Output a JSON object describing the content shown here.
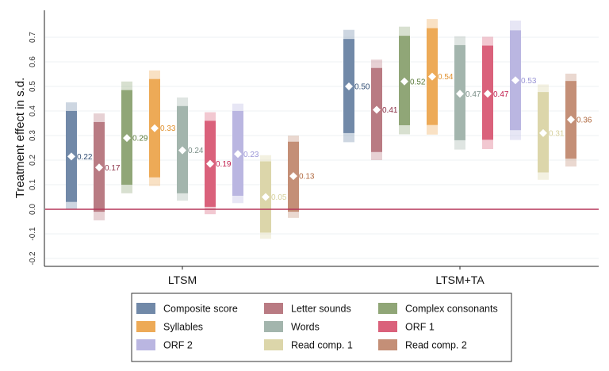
{
  "chart_data": {
    "type": "bar",
    "subtype": "range-bar with point estimates",
    "ylabel": "Treatment effect in s.d.",
    "xlabel": "",
    "ylim": [
      -0.2,
      0.75
    ],
    "yticks": [
      "-0.2",
      "-0.1",
      "0.0",
      "0.1",
      "0.2",
      "0.3",
      "0.4",
      "0.5",
      "0.6",
      "0.7"
    ],
    "ytick_values": [
      -0.2,
      -0.1,
      0.0,
      0.1,
      0.2,
      0.3,
      0.4,
      0.5,
      0.6,
      0.7
    ],
    "grid": true,
    "reference_line": {
      "y": 0,
      "color": "#b5375a"
    },
    "categories": [
      "LTSM",
      "LTSM+TA"
    ],
    "legend_position": "bottom",
    "series": [
      {
        "name": "Composite score",
        "color": "#7189a8",
        "label_color": "#2f4c73",
        "estimates": [
          0.215,
          0.5
        ],
        "labels": [
          "0.22",
          "0.50"
        ],
        "ci_inner": [
          [
            0.03,
            0.4
          ],
          [
            0.31,
            0.693
          ]
        ],
        "ci_outer": [
          [
            0.0,
            0.435
          ],
          [
            0.273,
            0.73
          ]
        ]
      },
      {
        "name": "Letter sounds",
        "color": "#b97b83",
        "label_color": "#8b2f45",
        "estimates": [
          0.17,
          0.405
        ],
        "labels": [
          "0.17",
          "0.41"
        ],
        "ci_inner": [
          [
            -0.01,
            0.355
          ],
          [
            0.233,
            0.575
          ]
        ],
        "ci_outer": [
          [
            -0.045,
            0.39
          ],
          [
            0.2,
            0.609
          ]
        ]
      },
      {
        "name": "Complex consonants",
        "color": "#90a677",
        "label_color": "#5a7a3a",
        "estimates": [
          0.29,
          0.52
        ],
        "labels": [
          "0.29",
          "0.52"
        ],
        "ci_inner": [
          [
            0.1,
            0.485
          ],
          [
            0.342,
            0.706
          ]
        ],
        "ci_outer": [
          [
            0.065,
            0.52
          ],
          [
            0.305,
            0.743
          ]
        ]
      },
      {
        "name": "Syllables",
        "color": "#edaa57",
        "label_color": "#e0902c",
        "estimates": [
          0.33,
          0.54
        ],
        "labels": [
          "0.33",
          "0.54"
        ],
        "ci_inner": [
          [
            0.13,
            0.53
          ],
          [
            0.343,
            0.737
          ]
        ],
        "ci_outer": [
          [
            0.095,
            0.565
          ],
          [
            0.304,
            0.774
          ]
        ]
      },
      {
        "name": "Words",
        "color": "#a3b5ad",
        "label_color": "#7a8e87",
        "estimates": [
          0.24,
          0.47
        ],
        "labels": [
          "0.24",
          "0.47"
        ],
        "ci_inner": [
          [
            0.065,
            0.42
          ],
          [
            0.281,
            0.668
          ]
        ],
        "ci_outer": [
          [
            0.035,
            0.455
          ],
          [
            0.243,
            0.704
          ]
        ]
      },
      {
        "name": "ORF 1",
        "color": "#da617b",
        "label_color": "#c01a4a",
        "estimates": [
          0.185,
          0.47
        ],
        "labels": [
          "0.19",
          "0.47"
        ],
        "ci_inner": [
          [
            0.01,
            0.36
          ],
          [
            0.283,
            0.666
          ]
        ],
        "ci_outer": [
          [
            -0.02,
            0.395
          ],
          [
            0.245,
            0.702
          ]
        ]
      },
      {
        "name": "ORF 2",
        "color": "#bab6e1",
        "label_color": "#9a95d6",
        "estimates": [
          0.225,
          0.525
        ],
        "labels": [
          "0.23",
          "0.53"
        ],
        "ci_inner": [
          [
            0.055,
            0.4
          ],
          [
            0.322,
            0.728
          ]
        ],
        "ci_outer": [
          [
            0.025,
            0.43
          ],
          [
            0.282,
            0.768
          ]
        ]
      },
      {
        "name": "Read comp. 1",
        "color": "#dcd6aa",
        "label_color": "#d6d09c",
        "estimates": [
          0.05,
          0.31
        ],
        "labels": [
          "0.05",
          "0.31"
        ],
        "ci_inner": [
          [
            -0.095,
            0.195
          ],
          [
            0.15,
            0.477
          ]
        ],
        "ci_outer": [
          [
            -0.12,
            0.22
          ],
          [
            0.12,
            0.508
          ]
        ]
      },
      {
        "name": "Read comp. 2",
        "color": "#c48f77",
        "label_color": "#b0683e",
        "estimates": [
          0.135,
          0.365
        ],
        "labels": [
          "0.13",
          "0.36"
        ],
        "ci_inner": [
          [
            -0.01,
            0.275
          ],
          [
            0.206,
            0.522
          ]
        ],
        "ci_outer": [
          [
            -0.035,
            0.3
          ],
          [
            0.174,
            0.552
          ]
        ]
      }
    ]
  }
}
